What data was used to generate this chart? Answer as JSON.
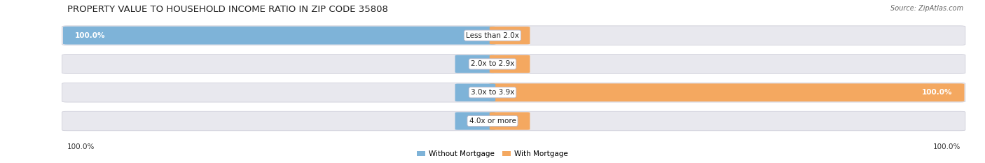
{
  "title": "PROPERTY VALUE TO HOUSEHOLD INCOME RATIO IN ZIP CODE 35808",
  "source": "Source: ZipAtlas.com",
  "categories": [
    "Less than 2.0x",
    "2.0x to 2.9x",
    "3.0x to 3.9x",
    "4.0x or more"
  ],
  "without_mortgage": [
    100.0,
    0.0,
    0.0,
    0.0
  ],
  "with_mortgage": [
    0.0,
    0.0,
    100.0,
    0.0
  ],
  "without_mortgage_color": "#7EB3D8",
  "with_mortgage_color": "#F4A860",
  "background_color": "#FFFFFF",
  "bar_bg_color": "#E8E8EE",
  "title_fontsize": 9.5,
  "label_fontsize": 7.5,
  "source_fontsize": 7.0,
  "legend_fontsize": 7.5,
  "x_left_label": "100.0%",
  "x_right_label": "100.0%"
}
